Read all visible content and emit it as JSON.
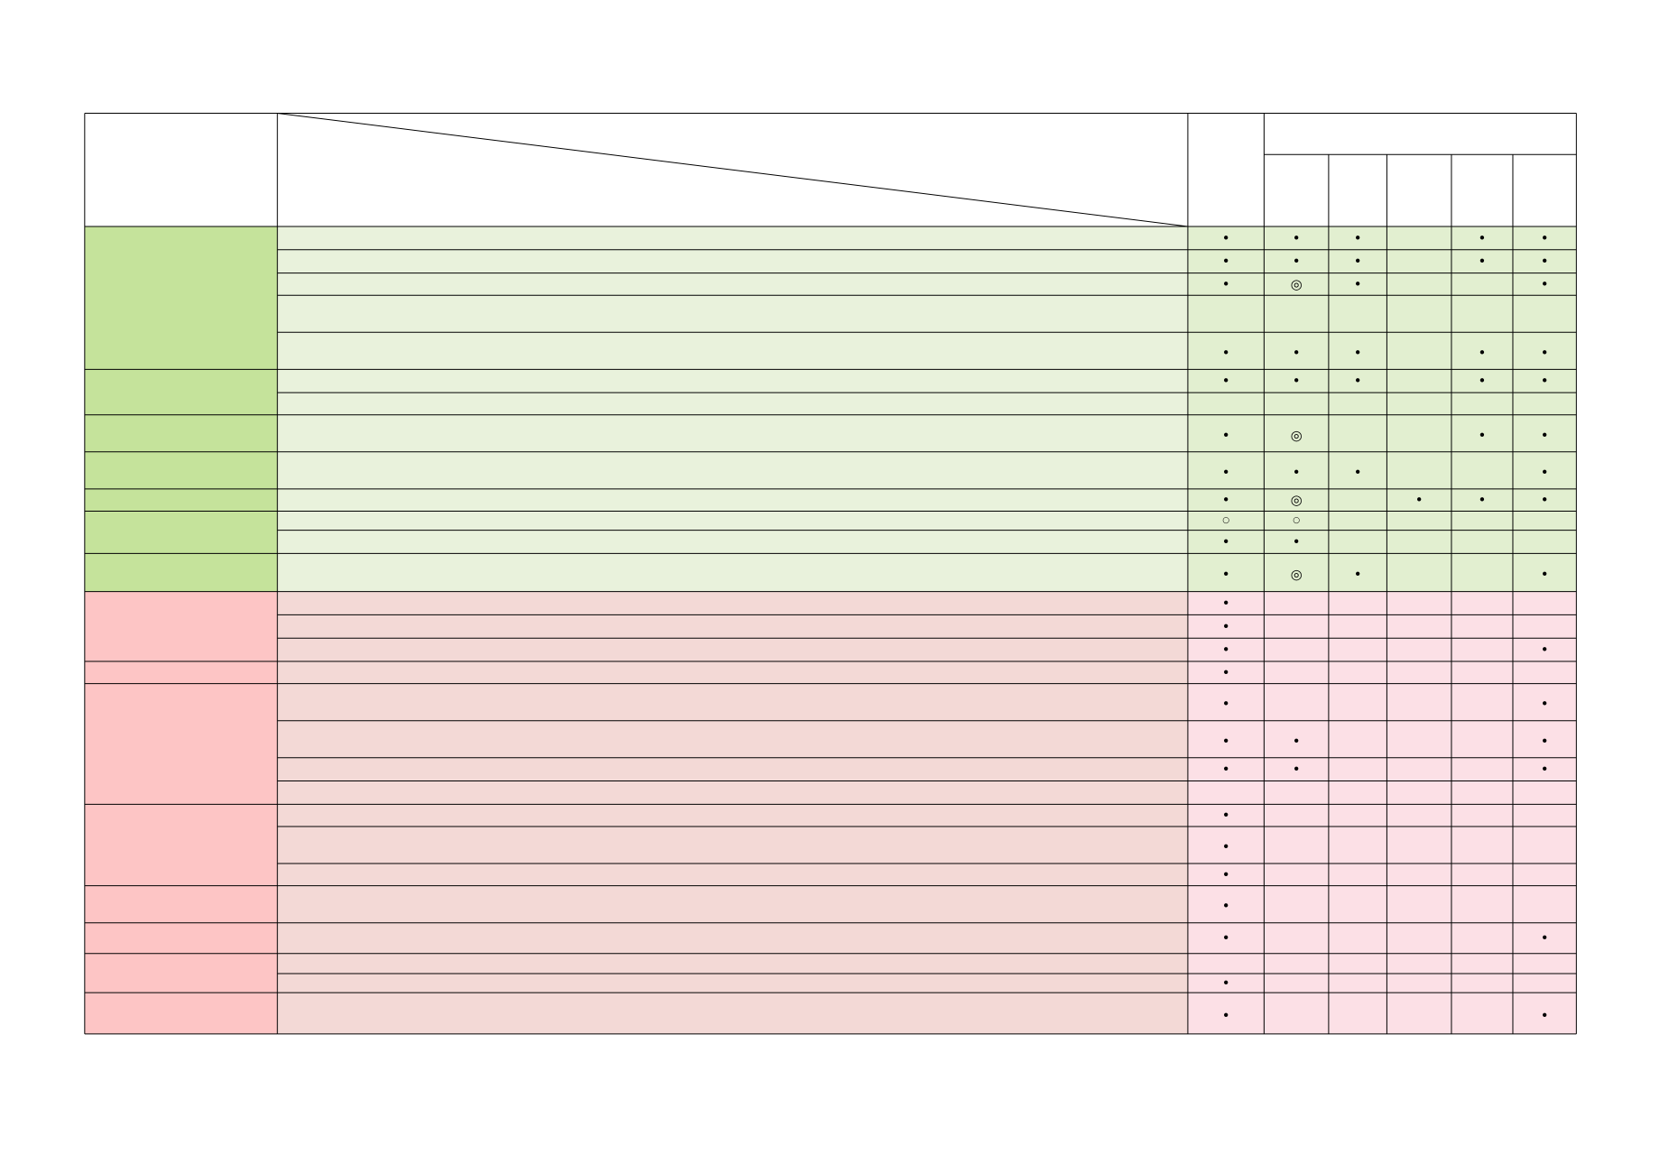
{
  "table": {
    "rows": [
      [
        "•",
        "•",
        "•",
        null,
        "•",
        "•"
      ],
      [
        "•",
        "•",
        "•",
        null,
        "•",
        "•"
      ],
      [
        "•",
        "◎",
        "•",
        null,
        null,
        "•"
      ],
      [
        null,
        null,
        null,
        null,
        null,
        null
      ],
      [
        "•",
        "•",
        "•",
        null,
        "•",
        "•"
      ],
      [
        "•",
        "•",
        "•",
        null,
        "•",
        "•"
      ],
      [
        null,
        null,
        null,
        null,
        null,
        null
      ],
      [
        "•",
        "◎",
        null,
        null,
        "•",
        "•"
      ],
      [
        "•",
        "•",
        "•",
        null,
        null,
        "•"
      ],
      [
        "•",
        "◎",
        null,
        "•",
        "•",
        "•"
      ],
      [
        "○",
        "○",
        null,
        null,
        null,
        null
      ],
      [
        "•",
        "•",
        null,
        null,
        null,
        null
      ],
      [
        "•",
        "◎",
        "•",
        null,
        null,
        "•"
      ],
      [
        "•",
        null,
        null,
        null,
        null,
        null
      ],
      [
        "•",
        null,
        null,
        null,
        null,
        null
      ],
      [
        "•",
        null,
        null,
        null,
        null,
        "•"
      ],
      [
        "•",
        null,
        null,
        null,
        null,
        null
      ],
      [
        "•",
        null,
        null,
        null,
        null,
        "•"
      ],
      [
        "•",
        "•",
        null,
        null,
        null,
        "•"
      ],
      [
        "•",
        "•",
        null,
        null,
        null,
        "•"
      ],
      [
        null,
        null,
        null,
        null,
        null,
        null
      ],
      [
        "•",
        null,
        null,
        null,
        null,
        null
      ],
      [
        "•",
        null,
        null,
        null,
        null,
        null
      ],
      [
        "•",
        null,
        null,
        null,
        null,
        null
      ],
      [
        "•",
        null,
        null,
        null,
        null,
        null
      ],
      [
        "•",
        null,
        null,
        null,
        null,
        "•"
      ],
      [
        null,
        null,
        null,
        null,
        null,
        null
      ],
      [
        "•",
        null,
        null,
        null,
        null,
        null
      ],
      [
        "•",
        null,
        null,
        null,
        null,
        "•"
      ]
    ]
  }
}
